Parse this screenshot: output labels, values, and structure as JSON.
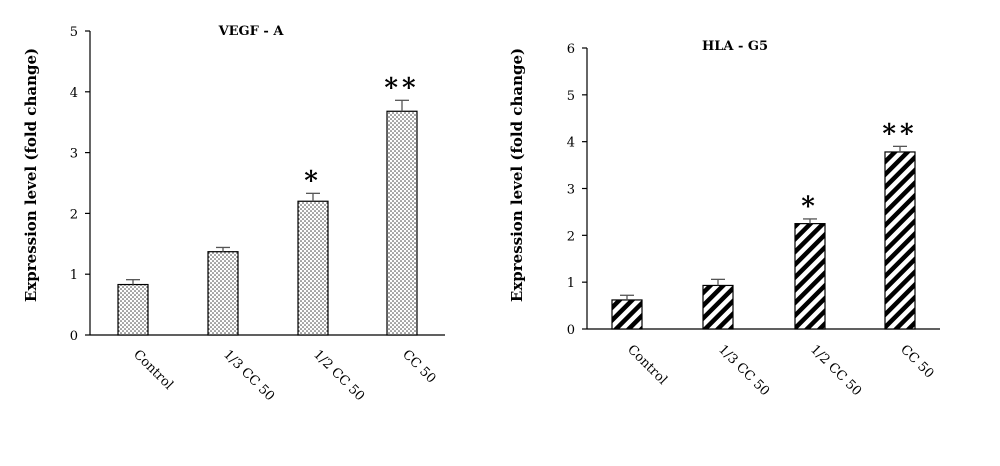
{
  "chart_data": [
    {
      "type": "bar",
      "title": "VEGF - A",
      "xlabel": "",
      "ylabel": "Expression level (fold change)",
      "ylim": [
        0,
        5
      ],
      "yticks": [
        0,
        1,
        2,
        3,
        4,
        5
      ],
      "categories": [
        "Control",
        "1/3 CC 50",
        "1/2 CC 50",
        "CC 50"
      ],
      "values": [
        0.83,
        1.37,
        2.2,
        3.68
      ],
      "errors": [
        0.08,
        0.07,
        0.13,
        0.18
      ],
      "annotations": [
        "",
        "",
        "*",
        "**"
      ],
      "fill_pattern": "dots",
      "grid": false
    },
    {
      "type": "bar",
      "title": "HLA - G5",
      "xlabel": "",
      "ylabel": "Expression level (fold change)",
      "ylim": [
        0,
        6
      ],
      "yticks": [
        0,
        1,
        2,
        3,
        4,
        5,
        6
      ],
      "categories": [
        "Control",
        "1/3 CC 50",
        "1/2 CC 50",
        "CC 50"
      ],
      "values": [
        0.62,
        0.93,
        2.25,
        3.78
      ],
      "errors": [
        0.1,
        0.13,
        0.1,
        0.12
      ],
      "annotations": [
        "",
        "",
        "*",
        "**"
      ],
      "fill_pattern": "diagonal-stripes",
      "grid": false
    }
  ]
}
